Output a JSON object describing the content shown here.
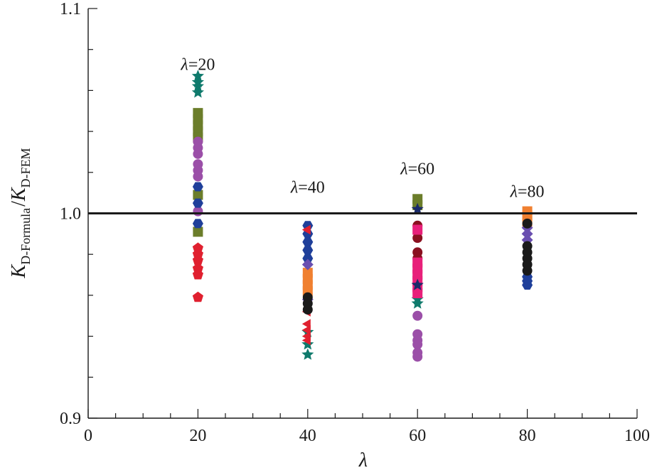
{
  "chart_data": {
    "type": "scatter",
    "title": "",
    "xlabel": "λ",
    "ylabel": {
      "main1": "K",
      "sub1": "D-Formula",
      "sep": "/",
      "main2": "K",
      "sub2": "D-FEM"
    },
    "xlim": [
      0,
      100
    ],
    "ylim": [
      0.9,
      1.1
    ],
    "x_ticks": [
      0,
      20,
      40,
      60,
      80,
      100
    ],
    "x_tick_labels": [
      "0",
      "20",
      "40",
      "60",
      "80",
      "100"
    ],
    "x_minor_step": 5,
    "y_ticks": [
      0.9,
      1.0,
      1.1
    ],
    "y_tick_labels": [
      "0.9",
      "1.0",
      "1.1"
    ],
    "y_minor_step": 0.02,
    "reference_line": 1.0,
    "annotations": [
      {
        "lambda": "λ",
        "eq": "=20",
        "x": 20,
        "y": 1.07
      },
      {
        "lambda": "λ",
        "eq": "=40",
        "x": 40,
        "y": 1.01
      },
      {
        "lambda": "λ",
        "eq": "=60",
        "x": 60,
        "y": 1.019
      },
      {
        "lambda": "λ",
        "eq": "=80",
        "x": 80,
        "y": 1.008
      }
    ],
    "series": [
      {
        "color": "#0f7a6c",
        "marker": "star",
        "points": [
          [
            20,
            1.067
          ],
          [
            20,
            1.064
          ],
          [
            20,
            1.062
          ],
          [
            20,
            1.059
          ],
          [
            40,
            0.942
          ],
          [
            40,
            0.936
          ],
          [
            40,
            0.931
          ],
          [
            60,
            0.958
          ],
          [
            60,
            0.956
          ]
        ]
      },
      {
        "color": "#6b7d2a",
        "marker": "square",
        "points": [
          [
            20,
            1.049
          ],
          [
            20,
            1.046
          ],
          [
            20,
            1.043
          ],
          [
            20,
            1.04
          ],
          [
            20,
            1.037
          ],
          [
            20,
            1.009
          ],
          [
            20,
            0.991
          ],
          [
            60,
            1.007
          ],
          [
            60,
            1.004
          ]
        ]
      },
      {
        "color": "#9b4fa8",
        "marker": "circle",
        "points": [
          [
            20,
            1.035
          ],
          [
            20,
            1.032
          ],
          [
            20,
            1.029
          ],
          [
            20,
            1.024
          ],
          [
            20,
            1.021
          ],
          [
            20,
            1.018
          ],
          [
            20,
            1.001
          ],
          [
            60,
            0.95
          ],
          [
            60,
            0.941
          ],
          [
            60,
            0.938
          ],
          [
            60,
            0.936
          ],
          [
            60,
            0.932
          ],
          [
            60,
            0.93
          ]
        ]
      },
      {
        "color": "#1f3f9a",
        "marker": "hexagon",
        "points": [
          [
            20,
            1.013
          ],
          [
            20,
            1.005
          ],
          [
            20,
            0.995
          ],
          [
            40,
            0.994
          ],
          [
            40,
            0.99
          ],
          [
            40,
            0.986
          ],
          [
            40,
            0.982
          ],
          [
            40,
            0.978
          ],
          [
            80,
            0.969
          ],
          [
            80,
            0.967
          ],
          [
            80,
            0.965
          ]
        ]
      },
      {
        "color": "#e0202f",
        "marker": "pentagon",
        "points": [
          [
            20,
            0.983
          ],
          [
            20,
            0.98
          ],
          [
            20,
            0.977
          ],
          [
            20,
            0.973
          ],
          [
            20,
            0.97
          ],
          [
            20,
            0.959
          ]
        ]
      },
      {
        "color": "#e0202f",
        "marker": "triangle-left",
        "points": [
          [
            40,
            0.992
          ],
          [
            40,
            0.952
          ],
          [
            40,
            0.946
          ],
          [
            40,
            0.943
          ],
          [
            40,
            0.94
          ],
          [
            40,
            0.938
          ]
        ]
      },
      {
        "color": "#f08030",
        "marker": "square",
        "points": [
          [
            40,
            0.971
          ],
          [
            40,
            0.968
          ],
          [
            40,
            0.965
          ],
          [
            40,
            0.962
          ],
          [
            80,
            1.001
          ],
          [
            80,
            0.999
          ],
          [
            80,
            0.996
          ]
        ]
      },
      {
        "color": "#6a4fb0",
        "marker": "diamond",
        "points": [
          [
            40,
            0.975
          ],
          [
            40,
            0.958
          ],
          [
            80,
            0.993
          ],
          [
            80,
            0.99
          ],
          [
            80,
            0.987
          ]
        ]
      },
      {
        "color": "#1a1a1a",
        "marker": "circle",
        "points": [
          [
            40,
            0.959
          ],
          [
            40,
            0.956
          ],
          [
            40,
            0.953
          ],
          [
            80,
            0.995
          ],
          [
            80,
            0.984
          ],
          [
            80,
            0.981
          ],
          [
            80,
            0.978
          ],
          [
            80,
            0.975
          ],
          [
            80,
            0.972
          ]
        ]
      },
      {
        "color": "#8a1020",
        "marker": "circle",
        "points": [
          [
            60,
            0.994
          ],
          [
            60,
            0.988
          ],
          [
            60,
            0.981
          ],
          [
            60,
            0.978
          ]
        ]
      },
      {
        "color": "#e8207a",
        "marker": "square",
        "points": [
          [
            60,
            0.992
          ],
          [
            60,
            0.976
          ],
          [
            60,
            0.973
          ],
          [
            60,
            0.97
          ],
          [
            60,
            0.967
          ],
          [
            60,
            0.964
          ],
          [
            60,
            0.961
          ]
        ]
      },
      {
        "color": "#1a2a6a",
        "marker": "star",
        "points": [
          [
            60,
            1.002
          ],
          [
            60,
            0.965
          ]
        ]
      }
    ]
  }
}
